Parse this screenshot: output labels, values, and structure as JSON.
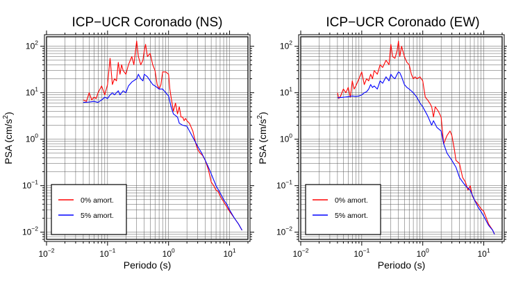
{
  "chart_data": [
    {
      "type": "line",
      "title": "ICP−UCR Coronado (NS)",
      "xlabel": "Periodo (s)",
      "ylabel_main": "PSA (cm/s",
      "ylabel_sup": "2",
      "ylabel_end": ")",
      "xscale": "log",
      "yscale": "log",
      "xlim": [
        0.01,
        20
      ],
      "ylim": [
        0.007,
        160
      ],
      "grid": true,
      "legend_position": "bottom-left",
      "x_tick_labels": [
        {
          "base": "10",
          "exp": "−2"
        },
        {
          "base": "10",
          "exp": "−1"
        },
        {
          "base": "10",
          "exp": "0"
        },
        {
          "base": "10",
          "exp": "1"
        }
      ],
      "y_tick_labels": [
        {
          "base": "10",
          "exp": "−2"
        },
        {
          "base": "10",
          "exp": "−1"
        },
        {
          "base": "10",
          "exp": "0"
        },
        {
          "base": "10",
          "exp": "1"
        },
        {
          "base": "10",
          "exp": "2"
        }
      ],
      "series": [
        {
          "name": "0% amort.",
          "color": "#ff0000",
          "points": [
            [
              0.04,
              7
            ],
            [
              0.045,
              6.5
            ],
            [
              0.05,
              10
            ],
            [
              0.055,
              7
            ],
            [
              0.06,
              8
            ],
            [
              0.065,
              7.5
            ],
            [
              0.07,
              10
            ],
            [
              0.08,
              14
            ],
            [
              0.09,
              9
            ],
            [
              0.1,
              15
            ],
            [
              0.11,
              55
            ],
            [
              0.12,
              15
            ],
            [
              0.13,
              20
            ],
            [
              0.14,
              18
            ],
            [
              0.15,
              45
            ],
            [
              0.16,
              25
            ],
            [
              0.17,
              40
            ],
            [
              0.18,
              30
            ],
            [
              0.2,
              25
            ],
            [
              0.22,
              40
            ],
            [
              0.25,
              60
            ],
            [
              0.27,
              40
            ],
            [
              0.3,
              130
            ],
            [
              0.32,
              60
            ],
            [
              0.35,
              40
            ],
            [
              0.38,
              50
            ],
            [
              0.4,
              80
            ],
            [
              0.42,
              110
            ],
            [
              0.45,
              60
            ],
            [
              0.5,
              70
            ],
            [
              0.55,
              40
            ],
            [
              0.6,
              30
            ],
            [
              0.65,
              15
            ],
            [
              0.7,
              12
            ],
            [
              0.75,
              15
            ],
            [
              0.8,
              28
            ],
            [
              0.9,
              28
            ],
            [
              1.0,
              25
            ],
            [
              1.05,
              12
            ],
            [
              1.1,
              8
            ],
            [
              1.2,
              4
            ],
            [
              1.3,
              6
            ],
            [
              1.4,
              3.5
            ],
            [
              1.5,
              5
            ],
            [
              1.6,
              3
            ],
            [
              1.7,
              3
            ],
            [
              1.8,
              2.5
            ],
            [
              1.9,
              2.8
            ],
            [
              2.0,
              2.5
            ],
            [
              2.2,
              2.2
            ],
            [
              2.5,
              1.5
            ],
            [
              2.8,
              0.8
            ],
            [
              3.0,
              0.6
            ],
            [
              3.3,
              0.5
            ],
            [
              3.6,
              0.45
            ],
            [
              4.0,
              0.35
            ],
            [
              4.5,
              0.22
            ],
            [
              5.0,
              0.12
            ],
            [
              5.5,
              0.1
            ],
            [
              6,
              0.08
            ],
            [
              6.5,
              0.075
            ],
            [
              7,
              0.06
            ],
            [
              8,
              0.045
            ],
            [
              9,
              0.035
            ],
            [
              10,
              0.028
            ],
            [
              12,
              0.02
            ],
            [
              14,
              0.015
            ],
            [
              16,
              0.011
            ]
          ]
        },
        {
          "name": "5% amort.",
          "color": "#0000ff",
          "points": [
            [
              0.04,
              6.2
            ],
            [
              0.05,
              6.3
            ],
            [
              0.06,
              6.5
            ],
            [
              0.07,
              6.2
            ],
            [
              0.08,
              7
            ],
            [
              0.09,
              8
            ],
            [
              0.1,
              7.5
            ],
            [
              0.11,
              9
            ],
            [
              0.12,
              10
            ],
            [
              0.13,
              9
            ],
            [
              0.14,
              10
            ],
            [
              0.15,
              11
            ],
            [
              0.16,
              9
            ],
            [
              0.17,
              10
            ],
            [
              0.18,
              11
            ],
            [
              0.2,
              10
            ],
            [
              0.22,
              14
            ],
            [
              0.25,
              17
            ],
            [
              0.3,
              20
            ],
            [
              0.32,
              25
            ],
            [
              0.35,
              20
            ],
            [
              0.38,
              18
            ],
            [
              0.4,
              25
            ],
            [
              0.45,
              22
            ],
            [
              0.5,
              18
            ],
            [
              0.55,
              15
            ],
            [
              0.6,
              14
            ],
            [
              0.7,
              12
            ],
            [
              0.8,
              12
            ],
            [
              0.9,
              10
            ],
            [
              1.0,
              8.5
            ],
            [
              1.1,
              5
            ],
            [
              1.2,
              3.5
            ],
            [
              1.4,
              3
            ],
            [
              1.5,
              2.2
            ],
            [
              1.7,
              2
            ],
            [
              2.0,
              1.9
            ],
            [
              2.2,
              1.5
            ],
            [
              2.5,
              1.1
            ],
            [
              3.0,
              0.7
            ],
            [
              3.5,
              0.5
            ],
            [
              4,
              0.35
            ],
            [
              4.5,
              0.25
            ],
            [
              5,
              0.18
            ],
            [
              6,
              0.1
            ],
            [
              7,
              0.07
            ],
            [
              8,
              0.05
            ],
            [
              9,
              0.04
            ],
            [
              10,
              0.03
            ],
            [
              12,
              0.02
            ],
            [
              14,
              0.015
            ],
            [
              16,
              0.011
            ]
          ]
        }
      ]
    },
    {
      "type": "line",
      "title": "ICP−UCR Coronado (EW)",
      "xlabel": "Periodo (s)",
      "ylabel_main": "PSA (cm/s",
      "ylabel_sup": "2",
      "ylabel_end": ")",
      "xscale": "log",
      "yscale": "log",
      "xlim": [
        0.01,
        20
      ],
      "ylim": [
        0.007,
        160
      ],
      "grid": true,
      "legend_position": "bottom-left",
      "x_tick_labels": [
        {
          "base": "10",
          "exp": "−2"
        },
        {
          "base": "10",
          "exp": "−1"
        },
        {
          "base": "10",
          "exp": "0"
        },
        {
          "base": "10",
          "exp": "1"
        }
      ],
      "y_tick_labels": [
        {
          "base": "10",
          "exp": "−2"
        },
        {
          "base": "10",
          "exp": "−1"
        },
        {
          "base": "10",
          "exp": "0"
        },
        {
          "base": "10",
          "exp": "1"
        },
        {
          "base": "10",
          "exp": "2"
        }
      ],
      "series": [
        {
          "name": "0% amort.",
          "color": "#ff0000",
          "points": [
            [
              0.04,
              10
            ],
            [
              0.042,
              7.5
            ],
            [
              0.045,
              8.5
            ],
            [
              0.05,
              12
            ],
            [
              0.055,
              10
            ],
            [
              0.06,
              13
            ],
            [
              0.065,
              8
            ],
            [
              0.07,
              18
            ],
            [
              0.075,
              12
            ],
            [
              0.08,
              14
            ],
            [
              0.09,
              20
            ],
            [
              0.1,
              28
            ],
            [
              0.11,
              15
            ],
            [
              0.12,
              20
            ],
            [
              0.13,
              18
            ],
            [
              0.14,
              25
            ],
            [
              0.15,
              20
            ],
            [
              0.16,
              30
            ],
            [
              0.18,
              25
            ],
            [
              0.2,
              40
            ],
            [
              0.22,
              35
            ],
            [
              0.25,
              50
            ],
            [
              0.28,
              40
            ],
            [
              0.3,
              110
            ],
            [
              0.32,
              60
            ],
            [
              0.35,
              55
            ],
            [
              0.38,
              80
            ],
            [
              0.4,
              130
            ],
            [
              0.42,
              60
            ],
            [
              0.45,
              100
            ],
            [
              0.5,
              60
            ],
            [
              0.55,
              45
            ],
            [
              0.6,
              40
            ],
            [
              0.65,
              25
            ],
            [
              0.7,
              20
            ],
            [
              0.75,
              22
            ],
            [
              0.8,
              20
            ],
            [
              0.9,
              22
            ],
            [
              1.0,
              18
            ],
            [
              1.1,
              8
            ],
            [
              1.2,
              7
            ],
            [
              1.3,
              6
            ],
            [
              1.4,
              5
            ],
            [
              1.5,
              3
            ],
            [
              1.6,
              5
            ],
            [
              1.8,
              4
            ],
            [
              2.0,
              3
            ],
            [
              2.2,
              0.8
            ],
            [
              2.5,
              1.2
            ],
            [
              2.8,
              1.5
            ],
            [
              3.0,
              1.2
            ],
            [
              3.3,
              0.6
            ],
            [
              3.5,
              0.35
            ],
            [
              4.0,
              0.3
            ],
            [
              4.5,
              0.15
            ],
            [
              5.0,
              0.12
            ],
            [
              5.5,
              0.08
            ],
            [
              6,
              0.1
            ],
            [
              6.5,
              0.06
            ],
            [
              7,
              0.05
            ],
            [
              8,
              0.04
            ],
            [
              9,
              0.032
            ],
            [
              10,
              0.028
            ],
            [
              12,
              0.015
            ],
            [
              14,
              0.011
            ],
            [
              15,
              0.009
            ]
          ]
        },
        {
          "name": "5% amort.",
          "color": "#0000ff",
          "points": [
            [
              0.04,
              7.8
            ],
            [
              0.05,
              8
            ],
            [
              0.06,
              8.2
            ],
            [
              0.07,
              8.5
            ],
            [
              0.08,
              8.3
            ],
            [
              0.09,
              8.5
            ],
            [
              0.1,
              9
            ],
            [
              0.11,
              10
            ],
            [
              0.12,
              10.5
            ],
            [
              0.13,
              12
            ],
            [
              0.14,
              15
            ],
            [
              0.15,
              13
            ],
            [
              0.16,
              14
            ],
            [
              0.18,
              12
            ],
            [
              0.2,
              18
            ],
            [
              0.22,
              16
            ],
            [
              0.25,
              22
            ],
            [
              0.28,
              18
            ],
            [
              0.3,
              25
            ],
            [
              0.32,
              22
            ],
            [
              0.35,
              20
            ],
            [
              0.38,
              25
            ],
            [
              0.4,
              28
            ],
            [
              0.42,
              27
            ],
            [
              0.45,
              22
            ],
            [
              0.5,
              15
            ],
            [
              0.55,
              13
            ],
            [
              0.6,
              12
            ],
            [
              0.7,
              10
            ],
            [
              0.8,
              8
            ],
            [
              0.9,
              6
            ],
            [
              1.0,
              5
            ],
            [
              1.2,
              3.2
            ],
            [
              1.4,
              2
            ],
            [
              1.5,
              2.5
            ],
            [
              1.7,
              1.8
            ],
            [
              2.0,
              1.5
            ],
            [
              2.2,
              0.8
            ],
            [
              2.5,
              0.5
            ],
            [
              3.0,
              0.35
            ],
            [
              3.5,
              0.25
            ],
            [
              4,
              0.15
            ],
            [
              4.5,
              0.12
            ],
            [
              5,
              0.1
            ],
            [
              6,
              0.08
            ],
            [
              7,
              0.05
            ],
            [
              8,
              0.035
            ],
            [
              9,
              0.028
            ],
            [
              10,
              0.022
            ],
            [
              12,
              0.014
            ],
            [
              14,
              0.011
            ],
            [
              15,
              0.009
            ]
          ]
        }
      ]
    }
  ]
}
